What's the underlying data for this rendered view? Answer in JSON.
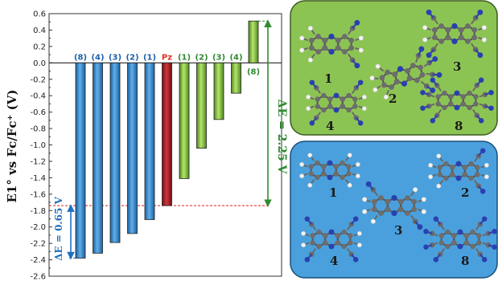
{
  "chart_data": {
    "type": "bar",
    "ylabel": "E1° vs Fc/Fc⁺ (V)",
    "ylim": [
      -2.6,
      0.6
    ],
    "yticks": [
      "0.6",
      "0.4",
      "0.2",
      "0.0",
      "-0.2",
      "-0.4",
      "-0.6",
      "-0.8",
      "-1.0",
      "-1.2",
      "-1.4",
      "-1.6",
      "-1.8",
      "-2.0",
      "-2.2",
      "-2.4",
      "-2.6"
    ],
    "categories": [
      "(8)",
      "(4)",
      "(3)",
      "(2)",
      "(1)",
      "Pz",
      "(1)",
      "(2)",
      "(3)",
      "(4)",
      "(8)"
    ],
    "values": [
      -2.38,
      -2.32,
      -2.19,
      -2.08,
      -1.91,
      -1.74,
      -1.41,
      -1.04,
      -0.69,
      -0.37,
      0.51
    ],
    "bar_groups": [
      "blue",
      "blue",
      "blue",
      "blue",
      "blue",
      "red",
      "green",
      "green",
      "green",
      "green",
      "green"
    ],
    "colors": {
      "blue": "#3a8fd0",
      "red": "#b2202a",
      "green": "#8cc63f",
      "blue_label": "#1f5fa8",
      "red_label": "#e0301e",
      "green_label": "#2f8a2f"
    },
    "annotations": {
      "dE_green": "ΔE = 2.25 V",
      "dE_blue": "ΔE = 0.65 V"
    }
  },
  "panels": {
    "top": {
      "bg": "#8cc454",
      "labels": [
        "1",
        "2",
        "3",
        "4",
        "8"
      ]
    },
    "bottom": {
      "bg": "#4aa0dc",
      "labels": [
        "1",
        "2",
        "3",
        "4",
        "8"
      ]
    }
  }
}
